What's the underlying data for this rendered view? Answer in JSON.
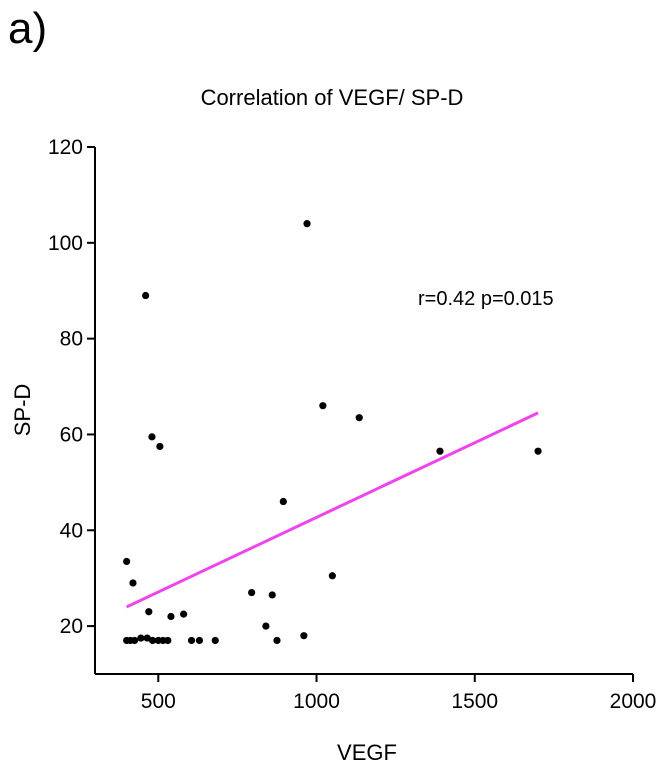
{
  "panel_label": "a)",
  "chart_data": {
    "type": "scatter",
    "title": "Correlation of VEGF/ SP-D",
    "xlabel": "VEGF",
    "ylabel": "SP-D",
    "xlim": [
      300,
      2000
    ],
    "ylim": [
      10,
      120
    ],
    "xticks": [
      500,
      1000,
      1500,
      2000
    ],
    "yticks": [
      20,
      40,
      60,
      80,
      100,
      120
    ],
    "annotation": "r=0.42   p=0.015",
    "points": [
      {
        "x": 400,
        "y": 33.5
      },
      {
        "x": 400,
        "y": 17
      },
      {
        "x": 412,
        "y": 17
      },
      {
        "x": 425,
        "y": 17
      },
      {
        "x": 420,
        "y": 29
      },
      {
        "x": 445,
        "y": 17.5
      },
      {
        "x": 460,
        "y": 89
      },
      {
        "x": 465,
        "y": 17.5
      },
      {
        "x": 470,
        "y": 23
      },
      {
        "x": 480,
        "y": 59.5
      },
      {
        "x": 482,
        "y": 17
      },
      {
        "x": 500,
        "y": 17
      },
      {
        "x": 505,
        "y": 57.5
      },
      {
        "x": 515,
        "y": 17
      },
      {
        "x": 530,
        "y": 17
      },
      {
        "x": 540,
        "y": 22
      },
      {
        "x": 580,
        "y": 22.5
      },
      {
        "x": 605,
        "y": 17
      },
      {
        "x": 630,
        "y": 17
      },
      {
        "x": 680,
        "y": 17
      },
      {
        "x": 795,
        "y": 27
      },
      {
        "x": 840,
        "y": 20
      },
      {
        "x": 860,
        "y": 26.5
      },
      {
        "x": 875,
        "y": 17
      },
      {
        "x": 895,
        "y": 46
      },
      {
        "x": 960,
        "y": 18
      },
      {
        "x": 970,
        "y": 104
      },
      {
        "x": 1020,
        "y": 66
      },
      {
        "x": 1050,
        "y": 30.5
      },
      {
        "x": 1135,
        "y": 63.5
      },
      {
        "x": 1390,
        "y": 56.5
      },
      {
        "x": 1700,
        "y": 56.5
      }
    ],
    "trendline": {
      "x": [
        400,
        1700
      ],
      "y": [
        24,
        64.5
      ],
      "color": "#ee44ee"
    },
    "marker_color": "#000000",
    "grid": false
  }
}
